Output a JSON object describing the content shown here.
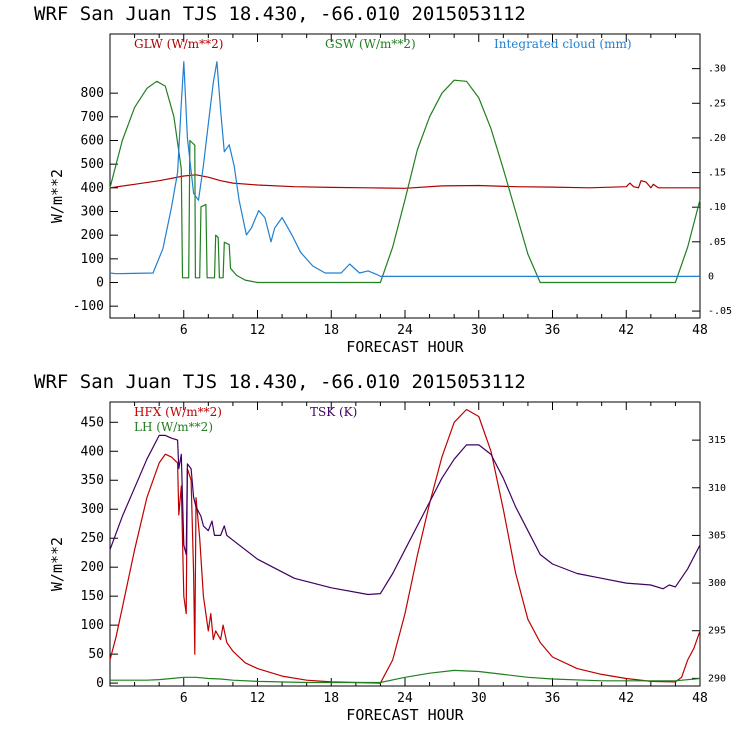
{
  "chart_data": [
    {
      "type": "line",
      "title": "WRF  San Juan TJS  18.430, -66.010  2015053112",
      "xlabel": "FORECAST HOUR",
      "ylabel": "W/m**2",
      "xlim": [
        0,
        48
      ],
      "ylim": [
        -150,
        1050
      ],
      "y2lim": [
        -0.06,
        0.35
      ],
      "x_ticks": [
        6,
        12,
        18,
        24,
        30,
        36,
        42,
        48
      ],
      "y_ticks": [
        -100,
        0,
        100,
        200,
        300,
        400,
        500,
        600,
        700,
        800
      ],
      "y2_ticks": [
        -0.05,
        0,
        0.05,
        0.1,
        0.15,
        0.2,
        0.25,
        0.3
      ],
      "y2_tick_labels": [
        "-.05",
        "0",
        ".05",
        ".10",
        ".15",
        ".20",
        ".25",
        ".30"
      ],
      "series": [
        {
          "name": "GLW (W/m**2)",
          "color": "#b00000",
          "axis": "left",
          "points": [
            [
              0,
              400
            ],
            [
              2,
              415
            ],
            [
              4,
              430
            ],
            [
              6,
              450
            ],
            [
              7,
              455
            ],
            [
              8,
              445
            ],
            [
              9,
              430
            ],
            [
              10,
              420
            ],
            [
              12,
              412
            ],
            [
              15,
              405
            ],
            [
              18,
              402
            ],
            [
              21,
              400
            ],
            [
              24,
              398
            ],
            [
              27,
              408
            ],
            [
              30,
              410
            ],
            [
              33,
              405
            ],
            [
              36,
              403
            ],
            [
              39,
              400
            ],
            [
              42,
              405
            ],
            [
              42.3,
              420
            ],
            [
              42.6,
              405
            ],
            [
              43,
              400
            ],
            [
              43.2,
              430
            ],
            [
              43.6,
              425
            ],
            [
              44,
              400
            ],
            [
              44.2,
              415
            ],
            [
              44.6,
              400
            ],
            [
              48,
              400
            ]
          ]
        },
        {
          "name": "GSW (W/m**2)",
          "color": "#208020",
          "axis": "left",
          "points": [
            [
              0,
              400
            ],
            [
              1,
              600
            ],
            [
              2,
              740
            ],
            [
              3,
              820
            ],
            [
              3.8,
              850
            ],
            [
              4.5,
              830
            ],
            [
              5.2,
              700
            ],
            [
              5.8,
              480
            ],
            [
              5.9,
              20
            ],
            [
              6.4,
              20
            ],
            [
              6.5,
              600
            ],
            [
              6.9,
              580
            ],
            [
              6.95,
              20
            ],
            [
              7.3,
              20
            ],
            [
              7.4,
              320
            ],
            [
              7.8,
              330
            ],
            [
              7.9,
              20
            ],
            [
              8.5,
              20
            ],
            [
              8.6,
              200
            ],
            [
              8.8,
              190
            ],
            [
              8.9,
              20
            ],
            [
              9.2,
              20
            ],
            [
              9.3,
              170
            ],
            [
              9.7,
              160
            ],
            [
              9.8,
              60
            ],
            [
              10.3,
              30
            ],
            [
              11,
              10
            ],
            [
              12,
              0
            ],
            [
              22,
              0
            ],
            [
              23,
              150
            ],
            [
              24,
              350
            ],
            [
              25,
              560
            ],
            [
              26,
              700
            ],
            [
              27,
              800
            ],
            [
              28,
              855
            ],
            [
              29,
              850
            ],
            [
              30,
              780
            ],
            [
              31,
              650
            ],
            [
              32,
              480
            ],
            [
              33,
              300
            ],
            [
              34,
              120
            ],
            [
              35,
              0
            ],
            [
              46,
              0
            ],
            [
              47,
              150
            ],
            [
              48,
              350
            ]
          ]
        },
        {
          "name": "Integrated cloud (mm)",
          "color": "#2080d0",
          "axis": "right",
          "points": [
            [
              0,
              0.005
            ],
            [
              0.5,
              0.004
            ],
            [
              3.5,
              0.005
            ],
            [
              4.3,
              0.04
            ],
            [
              5,
              0.1
            ],
            [
              5.5,
              0.15
            ],
            [
              5.8,
              0.25
            ],
            [
              6,
              0.31
            ],
            [
              6.3,
              0.2
            ],
            [
              6.8,
              0.12
            ],
            [
              7.2,
              0.11
            ],
            [
              7.6,
              0.16
            ],
            [
              8,
              0.22
            ],
            [
              8.4,
              0.28
            ],
            [
              8.7,
              0.31
            ],
            [
              9,
              0.24
            ],
            [
              9.3,
              0.18
            ],
            [
              9.7,
              0.19
            ],
            [
              10.1,
              0.16
            ],
            [
              10.5,
              0.11
            ],
            [
              11.1,
              0.06
            ],
            [
              11.5,
              0.07
            ],
            [
              12.1,
              0.095
            ],
            [
              12.6,
              0.085
            ],
            [
              13.1,
              0.05
            ],
            [
              13.4,
              0.07
            ],
            [
              14,
              0.085
            ],
            [
              14.8,
              0.06
            ],
            [
              15.5,
              0.035
            ],
            [
              16.5,
              0.015
            ],
            [
              17.5,
              0.005
            ],
            [
              18.8,
              0.005
            ],
            [
              19.5,
              0.018
            ],
            [
              20.3,
              0.005
            ],
            [
              21,
              0.008
            ],
            [
              21.7,
              0.003
            ],
            [
              22,
              0
            ],
            [
              48,
              0
            ]
          ]
        }
      ]
    },
    {
      "type": "line",
      "title": "WRF  San Juan TJS  18.430, -66.010  2015053112",
      "xlabel": "FORECAST HOUR",
      "ylabel": "W/m**2",
      "xlim": [
        0,
        48
      ],
      "ylim": [
        -5,
        485
      ],
      "y2lim": [
        289.2,
        319.0
      ],
      "x_ticks": [
        6,
        12,
        18,
        24,
        30,
        36,
        42,
        48
      ],
      "y_ticks": [
        0,
        50,
        100,
        150,
        200,
        250,
        300,
        350,
        400,
        450
      ],
      "y2_ticks": [
        290,
        295,
        300,
        305,
        310,
        315
      ],
      "y2_tick_labels": [
        "290",
        "295",
        "300",
        "305",
        "310",
        "315"
      ],
      "series": [
        {
          "name": "HFX (W/m**2)",
          "color": "#c00000",
          "axis": "left",
          "points": [
            [
              0,
              40
            ],
            [
              0.5,
              80
            ],
            [
              1,
              130
            ],
            [
              2,
              230
            ],
            [
              3,
              320
            ],
            [
              4,
              380
            ],
            [
              4.5,
              395
            ],
            [
              5,
              390
            ],
            [
              5.5,
              380
            ],
            [
              5.6,
              290
            ],
            [
              5.8,
              340
            ],
            [
              6,
              150
            ],
            [
              6.2,
              120
            ],
            [
              6.3,
              370
            ],
            [
              6.6,
              350
            ],
            [
              6.8,
              190
            ],
            [
              6.9,
              50
            ],
            [
              7,
              320
            ],
            [
              7.3,
              250
            ],
            [
              7.6,
              150
            ],
            [
              8,
              90
            ],
            [
              8.2,
              120
            ],
            [
              8.4,
              75
            ],
            [
              8.6,
              90
            ],
            [
              9,
              75
            ],
            [
              9.2,
              100
            ],
            [
              9.5,
              70
            ],
            [
              10,
              55
            ],
            [
              11,
              35
            ],
            [
              12,
              25
            ],
            [
              14,
              12
            ],
            [
              16,
              5
            ],
            [
              18,
              2
            ],
            [
              22,
              0
            ],
            [
              23,
              40
            ],
            [
              24,
              120
            ],
            [
              25,
              220
            ],
            [
              26,
              310
            ],
            [
              27,
              390
            ],
            [
              28,
              450
            ],
            [
              29,
              472
            ],
            [
              30,
              460
            ],
            [
              31,
              400
            ],
            [
              32,
              300
            ],
            [
              33,
              190
            ],
            [
              34,
              110
            ],
            [
              35,
              70
            ],
            [
              36,
              45
            ],
            [
              38,
              25
            ],
            [
              40,
              15
            ],
            [
              42,
              8
            ],
            [
              44,
              3
            ],
            [
              46,
              2
            ],
            [
              46.5,
              10
            ],
            [
              47,
              40
            ],
            [
              47.5,
              60
            ],
            [
              48,
              90
            ]
          ]
        },
        {
          "name": "LH  (W/m**2)",
          "color": "#208020",
          "axis": "left",
          "points": [
            [
              0,
              5
            ],
            [
              3,
              5
            ],
            [
              4,
              6
            ],
            [
              5,
              8
            ],
            [
              6,
              10
            ],
            [
              7,
              10
            ],
            [
              8,
              8
            ],
            [
              9,
              7
            ],
            [
              10,
              5
            ],
            [
              12,
              3
            ],
            [
              16,
              1
            ],
            [
              22,
              1
            ],
            [
              24,
              10
            ],
            [
              26,
              17
            ],
            [
              28,
              22
            ],
            [
              30,
              20
            ],
            [
              32,
              15
            ],
            [
              34,
              10
            ],
            [
              36,
              7
            ],
            [
              40,
              4
            ],
            [
              44,
              4
            ],
            [
              46,
              4
            ],
            [
              48,
              8
            ]
          ]
        },
        {
          "name": "TSK (K)",
          "color": "#400060",
          "axis": "right",
          "points": [
            [
              0,
              303.5
            ],
            [
              1,
              307
            ],
            [
              2,
              310
            ],
            [
              3,
              313
            ],
            [
              4,
              315.5
            ],
            [
              4.5,
              315.5
            ],
            [
              5,
              315.2
            ],
            [
              5.5,
              315
            ],
            [
              5.6,
              312
            ],
            [
              5.8,
              313.5
            ],
            [
              6,
              304
            ],
            [
              6.2,
              303
            ],
            [
              6.3,
              312.5
            ],
            [
              6.6,
              312
            ],
            [
              6.8,
              309
            ],
            [
              7,
              308
            ],
            [
              7.4,
              307
            ],
            [
              7.6,
              306
            ],
            [
              8,
              305.5
            ],
            [
              8.3,
              306.5
            ],
            [
              8.5,
              305
            ],
            [
              9,
              305
            ],
            [
              9.3,
              306
            ],
            [
              9.5,
              305
            ],
            [
              10,
              304.5
            ],
            [
              12,
              302.5
            ],
            [
              15,
              300.5
            ],
            [
              18,
              299.5
            ],
            [
              21,
              298.8
            ],
            [
              22,
              298.9
            ],
            [
              23,
              301
            ],
            [
              24,
              303.5
            ],
            [
              25,
              306
            ],
            [
              26,
              308.5
            ],
            [
              27,
              311
            ],
            [
              28,
              313
            ],
            [
              29,
              314.5
            ],
            [
              30,
              314.5
            ],
            [
              31,
              313.5
            ],
            [
              32,
              311
            ],
            [
              33,
              308
            ],
            [
              34,
              305.5
            ],
            [
              35,
              303
            ],
            [
              36,
              302
            ],
            [
              38,
              301
            ],
            [
              40,
              300.5
            ],
            [
              42,
              300
            ],
            [
              44,
              299.8
            ],
            [
              45,
              299.4
            ],
            [
              45.5,
              299.8
            ],
            [
              46,
              299.6
            ],
            [
              47,
              301.5
            ],
            [
              48,
              304
            ]
          ]
        }
      ]
    }
  ]
}
